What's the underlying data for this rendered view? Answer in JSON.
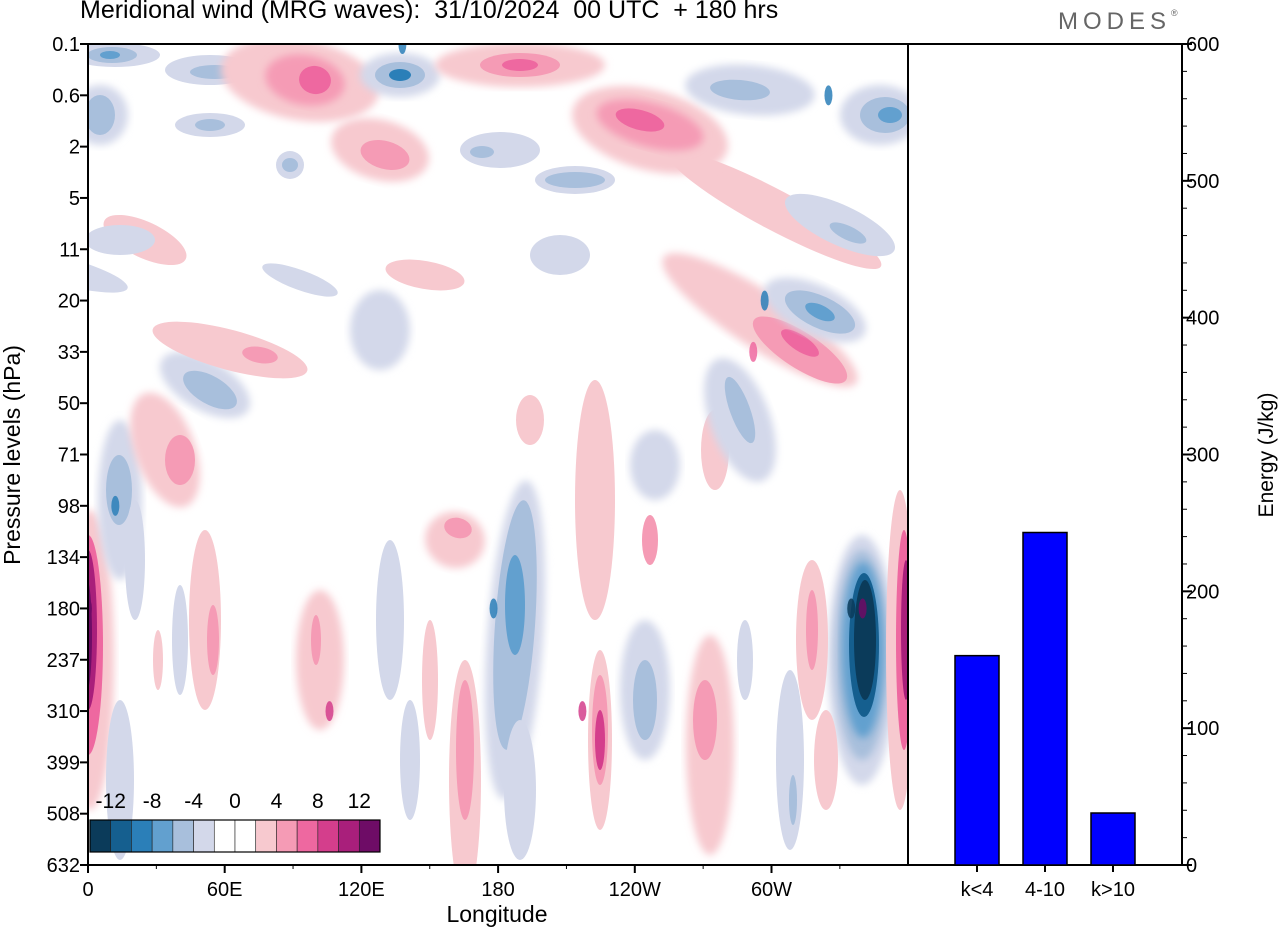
{
  "header": {
    "title": "Meridional wind (MRG waves):  31/10/2024  00 UTC  + 180 hrs",
    "brand": "MODES",
    "brand_mark": "®"
  },
  "chart_data": [
    {
      "type": "heatmap",
      "title": "Meridional wind (MRG waves):  31/10/2024  00 UTC  + 180 hrs",
      "xlabel": "Longitude",
      "ylabel": "Pressure levels (hPa)",
      "x_ticks": [
        "0",
        "60E",
        "120E",
        "180",
        "120W",
        "60W"
      ],
      "y_ticks": [
        "0.1",
        "0.6",
        "2",
        "5",
        "11",
        "20",
        "33",
        "50",
        "71",
        "98",
        "134",
        "180",
        "237",
        "310",
        "399",
        "508",
        "632"
      ],
      "colorbar": {
        "labels": [
          "-12",
          "-8",
          "-4",
          "0",
          "4",
          "8",
          "12"
        ],
        "colors": [
          "#0b3b5a",
          "#155f8f",
          "#2b7fb8",
          "#62a0cf",
          "#a8bfdc",
          "#d3d8ea",
          "#ffffff",
          "#ffffff",
          "#f7c9cf",
          "#f59bb5",
          "#ee68a0",
          "#d43e8c",
          "#a91f7b",
          "#6e0c66"
        ]
      },
      "features": [
        {
          "lon": 0,
          "level": 180,
          "value": 14
        },
        {
          "lon": 335,
          "level": 180,
          "value": -13
        },
        {
          "lon": 340,
          "level": 180,
          "value": 13
        },
        {
          "lon": 178,
          "level": 180,
          "value": -8
        },
        {
          "lon": 106,
          "level": 310,
          "value": 8
        },
        {
          "lon": 217,
          "level": 310,
          "value": 8
        },
        {
          "lon": 12,
          "level": 98,
          "value": -8
        },
        {
          "lon": 297,
          "level": 20,
          "value": -8
        },
        {
          "lon": 292,
          "level": 33,
          "value": 6
        },
        {
          "lon": 138,
          "level": 0.1,
          "value": -8
        },
        {
          "lon": 325,
          "level": 0.6,
          "value": -8
        }
      ]
    },
    {
      "type": "bar",
      "categories": [
        "k<4",
        "4-10",
        "k>10"
      ],
      "values": [
        153,
        243,
        38
      ],
      "ylabel": "Energy (J/kg)",
      "ylim": [
        0,
        600
      ],
      "y_ticks": [
        0,
        100,
        200,
        300,
        400,
        500,
        600
      ],
      "bar_color": "#0000ff"
    }
  ]
}
